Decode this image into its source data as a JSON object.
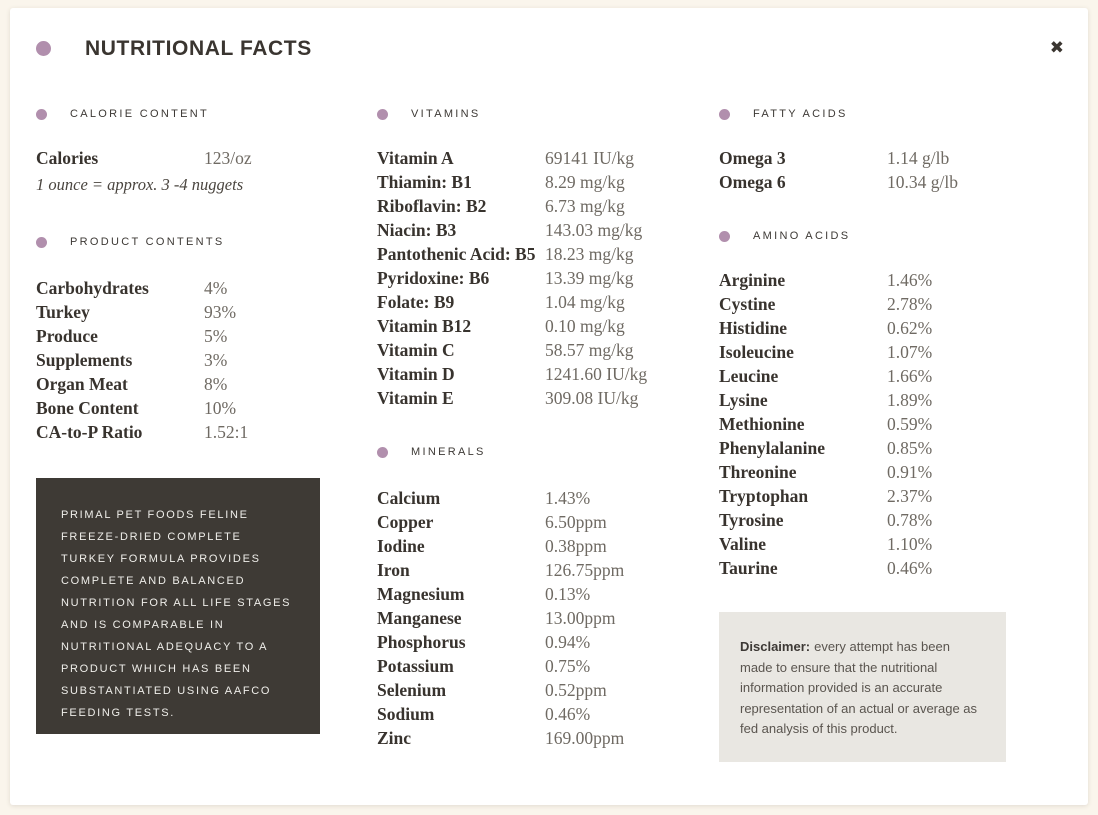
{
  "header": {
    "title": "NUTRITIONAL FACTS",
    "close_icon": "✖"
  },
  "colors": {
    "accent_dot": "#b18fad",
    "page_background": "#faf5ec",
    "aafco_box_background": "#3e3a35",
    "disclaimer_background": "#e9e7e2"
  },
  "calorie_content": {
    "heading": "CALORIE CONTENT",
    "rows": [
      {
        "label": "Calories",
        "value": "123/oz"
      }
    ],
    "note": "1 ounce = approx. 3 -4 nuggets"
  },
  "product_contents": {
    "heading": "PRODUCT CONTENTS",
    "rows": [
      {
        "label": "Carbohydrates",
        "value": "4%"
      },
      {
        "label": "Turkey",
        "value": "93%"
      },
      {
        "label": "Produce",
        "value": "5%"
      },
      {
        "label": "Supplements",
        "value": "3%"
      },
      {
        "label": "Organ Meat",
        "value": "8%"
      },
      {
        "label": "Bone Content",
        "value": "10%"
      },
      {
        "label": "CA-to-P Ratio",
        "value": "1.52:1"
      }
    ]
  },
  "aafco_statement": "PRIMAL PET FOODS FELINE FREEZE-DRIED COMPLETE TURKEY FORMULA PROVIDES COMPLETE AND BALANCED NUTRITION FOR ALL LIFE STAGES AND IS COMPARABLE IN NUTRITIONAL ADEQUACY TO A PRODUCT WHICH HAS BEEN SUBSTANTIATED USING AAFCO FEEDING TESTS.",
  "vitamins": {
    "heading": "VITAMINS",
    "rows": [
      {
        "label": "Vitamin A",
        "value": "69141 IU/kg"
      },
      {
        "label": "Thiamin: B1",
        "value": "8.29 mg/kg"
      },
      {
        "label": "Riboflavin: B2",
        "value": "6.73 mg/kg"
      },
      {
        "label": "Niacin: B3",
        "value": "143.03 mg/kg"
      },
      {
        "label": "Pantothenic Acid: B5",
        "value": "18.23 mg/kg"
      },
      {
        "label": "Pyridoxine: B6",
        "value": "13.39 mg/kg"
      },
      {
        "label": "Folate: B9",
        "value": "1.04 mg/kg"
      },
      {
        "label": "Vitamin B12",
        "value": "0.10 mg/kg"
      },
      {
        "label": "Vitamin C",
        "value": "58.57 mg/kg"
      },
      {
        "label": "Vitamin D",
        "value": "1241.60 IU/kg"
      },
      {
        "label": "Vitamin E",
        "value": "309.08 IU/kg"
      }
    ]
  },
  "minerals": {
    "heading": "MINERALS",
    "rows": [
      {
        "label": "Calcium",
        "value": "1.43%"
      },
      {
        "label": "Copper",
        "value": "6.50ppm"
      },
      {
        "label": "Iodine",
        "value": "0.38ppm"
      },
      {
        "label": "Iron",
        "value": "126.75ppm"
      },
      {
        "label": "Magnesium",
        "value": "0.13%"
      },
      {
        "label": "Manganese",
        "value": "13.00ppm"
      },
      {
        "label": "Phosphorus",
        "value": "0.94%"
      },
      {
        "label": "Potassium",
        "value": "0.75%"
      },
      {
        "label": "Selenium",
        "value": "0.52ppm"
      },
      {
        "label": "Sodium",
        "value": "0.46%"
      },
      {
        "label": "Zinc",
        "value": "169.00ppm"
      }
    ]
  },
  "fatty_acids": {
    "heading": "FATTY ACIDS",
    "rows": [
      {
        "label": "Omega 3",
        "value": "1.14 g/lb"
      },
      {
        "label": "Omega 6",
        "value": "10.34 g/lb"
      }
    ]
  },
  "amino_acids": {
    "heading": "AMINO ACIDS",
    "rows": [
      {
        "label": "Arginine",
        "value": "1.46%"
      },
      {
        "label": "Cystine",
        "value": "2.78%"
      },
      {
        "label": "Histidine",
        "value": "0.62%"
      },
      {
        "label": "Isoleucine",
        "value": "1.07%"
      },
      {
        "label": "Leucine",
        "value": "1.66%"
      },
      {
        "label": "Lysine",
        "value": "1.89%"
      },
      {
        "label": "Methionine",
        "value": "0.59%"
      },
      {
        "label": "Phenylalanine",
        "value": "0.85%"
      },
      {
        "label": "Threonine",
        "value": "0.91%"
      },
      {
        "label": "Tryptophan",
        "value": "2.37%"
      },
      {
        "label": "Tyrosine",
        "value": "0.78%"
      },
      {
        "label": "Valine",
        "value": "1.10%"
      },
      {
        "label": "Taurine",
        "value": "0.46%"
      }
    ]
  },
  "disclaimer": {
    "label": "Disclaimer:",
    "text": "every attempt has been made to ensure that the nutritional information provided is an accurate representation of an actual or average as fed analysis of this product."
  }
}
